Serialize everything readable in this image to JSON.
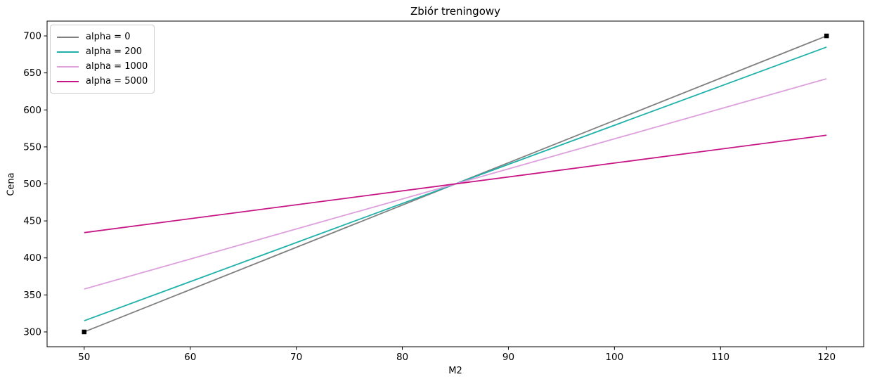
{
  "figure": {
    "background": "#ffffff",
    "axes_edge_color": "#000000",
    "legend_border_color": "#cccccc"
  },
  "chart_data": {
    "type": "line",
    "title": "Zbiór treningowy",
    "xlabel": "M2",
    "ylabel": "Cena",
    "xlim": [
      46.5,
      123.5
    ],
    "ylim": [
      280,
      720
    ],
    "x_ticks": [
      50,
      60,
      70,
      80,
      90,
      100,
      110,
      120
    ],
    "y_ticks": [
      300,
      350,
      400,
      450,
      500,
      550,
      600,
      650,
      700
    ],
    "grid": false,
    "legend_position": "upper left",
    "series": [
      {
        "name": "alpha = 0",
        "color": "#808080",
        "x": [
          50,
          120
        ],
        "y": [
          300,
          700
        ]
      },
      {
        "name": "alpha = 200",
        "color": "#20b2aa",
        "x": [
          50,
          120
        ],
        "y": [
          315.1,
          684.9
        ]
      },
      {
        "name": "alpha = 1000",
        "color": "#dda0dd",
        "x": [
          50,
          120
        ],
        "y": [
          357.9,
          642.1
        ]
      },
      {
        "name": "alpha = 5000",
        "color": "#c71585",
        "x": [
          50,
          120
        ],
        "y": [
          434.2,
          565.8
        ]
      }
    ],
    "training_points": {
      "marker": "square",
      "color": "#000000",
      "points": [
        [
          50,
          300
        ],
        [
          120,
          700
        ]
      ]
    }
  }
}
